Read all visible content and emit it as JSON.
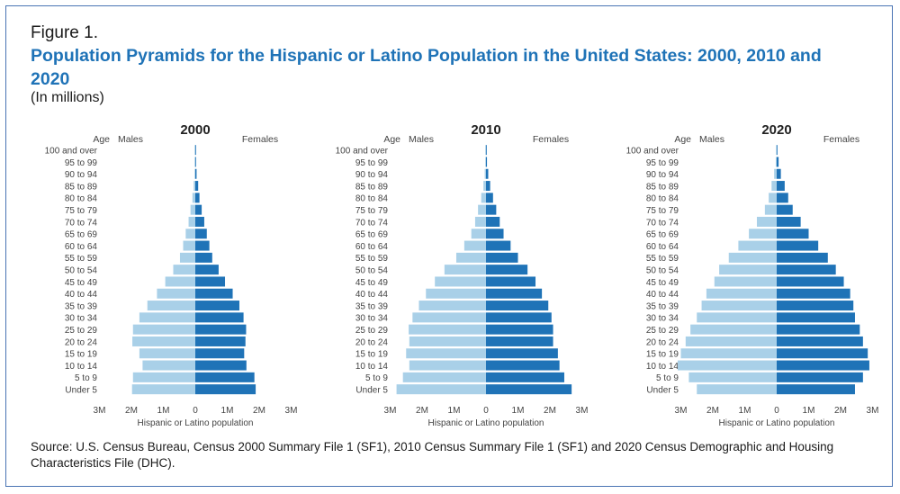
{
  "figure_label": "Figure 1.",
  "title": "Population Pyramids for the Hispanic or Latino Population in the United States: 2000, 2010 and 2020",
  "subtitle": "(In millions)",
  "source": "Source: U.S. Census Bureau, Census 2000 Summary File 1 (SF1), 2010 Census Summary File 1 (SF1) and 2020 Census Demographic and Housing Characteristics File (DHC).",
  "colors": {
    "males": "#a9d0e8",
    "females": "#1f73b7",
    "title": "#1f73b7",
    "border": "#4a74b4"
  },
  "chart_data": [
    {
      "type": "bar",
      "orientation": "population-pyramid",
      "title": "2000",
      "age_axis_label": "Age",
      "xlabel": "Hispanic or Latino population",
      "xlim": [
        -3,
        3
      ],
      "x_tick_labels": [
        "3M",
        "2M",
        "1M",
        "0",
        "1M",
        "2M",
        "3M"
      ],
      "categories": [
        "100 and over",
        "95 to 99",
        "90 to 94",
        "85 to 89",
        "80 to 84",
        "75 to 79",
        "70 to 74",
        "65 to 69",
        "60 to 64",
        "55 to 59",
        "50 to 54",
        "45 to 49",
        "40 to 44",
        "35 to 39",
        "30 to 34",
        "25 to 29",
        "20 to 24",
        "15 to 19",
        "10 to 14",
        "5 to 9",
        "Under 5"
      ],
      "series": [
        {
          "name": "Males",
          "values": [
            0.003,
            0.01,
            0.02,
            0.05,
            0.09,
            0.15,
            0.21,
            0.3,
            0.38,
            0.48,
            0.69,
            0.94,
            1.2,
            1.5,
            1.75,
            1.95,
            1.97,
            1.75,
            1.65,
            1.95,
            1.98
          ]
        },
        {
          "name": "Females",
          "values": [
            0.005,
            0.015,
            0.04,
            0.09,
            0.13,
            0.2,
            0.28,
            0.36,
            0.44,
            0.53,
            0.73,
            0.93,
            1.17,
            1.38,
            1.51,
            1.59,
            1.57,
            1.53,
            1.6,
            1.85,
            1.89
          ]
        }
      ]
    },
    {
      "type": "bar",
      "orientation": "population-pyramid",
      "title": "2010",
      "age_axis_label": "Age",
      "xlabel": "Hispanic or Latino population",
      "xlim": [
        -3,
        3
      ],
      "x_tick_labels": [
        "3M",
        "2M",
        "1M",
        "0",
        "1M",
        "2M",
        "3M"
      ],
      "categories": [
        "100 and over",
        "95 to 99",
        "90 to 94",
        "85 to 89",
        "80 to 84",
        "75 to 79",
        "70 to 74",
        "65 to 69",
        "60 to 64",
        "55 to 59",
        "50 to 54",
        "45 to 49",
        "40 to 44",
        "35 to 39",
        "30 to 34",
        "25 to 29",
        "20 to 24",
        "15 to 19",
        "10 to 14",
        "5 to 9",
        "Under 5"
      ],
      "series": [
        {
          "name": "Males",
          "values": [
            0.005,
            0.02,
            0.04,
            0.08,
            0.15,
            0.25,
            0.34,
            0.46,
            0.68,
            0.93,
            1.3,
            1.6,
            1.88,
            2.1,
            2.3,
            2.42,
            2.4,
            2.5,
            2.4,
            2.6,
            2.8
          ]
        },
        {
          "name": "Females",
          "values": [
            0.01,
            0.03,
            0.07,
            0.13,
            0.22,
            0.32,
            0.43,
            0.55,
            0.77,
            1.0,
            1.3,
            1.55,
            1.75,
            1.95,
            2.05,
            2.1,
            2.1,
            2.25,
            2.3,
            2.45,
            2.68
          ]
        }
      ]
    },
    {
      "type": "bar",
      "orientation": "population-pyramid",
      "title": "2020",
      "age_axis_label": "Age",
      "xlabel": "Hispanic or Latino population",
      "xlim": [
        -3,
        3
      ],
      "x_tick_labels": [
        "3M",
        "2M",
        "1M",
        "0",
        "1M",
        "2M",
        "3M"
      ],
      "categories": [
        "100 and over",
        "95 to 99",
        "90 to 94",
        "85 to 89",
        "80 to 84",
        "75 to 79",
        "70 to 74",
        "65 to 69",
        "60 to 64",
        "55 to 59",
        "50 to 54",
        "45 to 49",
        "40 to 44",
        "35 to 39",
        "30 to 34",
        "25 to 29",
        "20 to 24",
        "15 to 19",
        "10 to 14",
        "5 to 9",
        "Under 5"
      ],
      "series": [
        {
          "name": "Males",
          "values": [
            0.01,
            0.03,
            0.08,
            0.16,
            0.25,
            0.37,
            0.62,
            0.87,
            1.2,
            1.5,
            1.8,
            1.95,
            2.2,
            2.35,
            2.5,
            2.7,
            2.85,
            3.0,
            3.1,
            2.75,
            2.5
          ]
        },
        {
          "name": "Females",
          "values": [
            0.02,
            0.06,
            0.13,
            0.25,
            0.36,
            0.5,
            0.75,
            1.0,
            1.3,
            1.6,
            1.85,
            2.1,
            2.3,
            2.4,
            2.45,
            2.6,
            2.7,
            2.85,
            2.9,
            2.7,
            2.45
          ]
        }
      ]
    }
  ]
}
